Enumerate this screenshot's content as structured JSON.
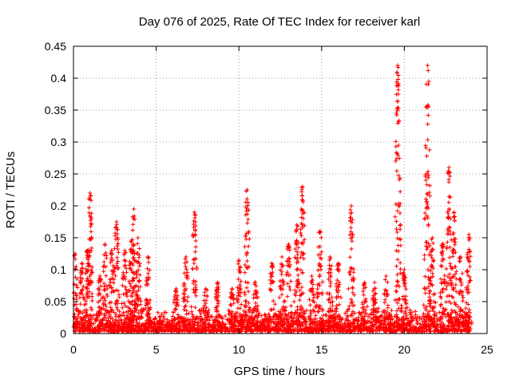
{
  "chart_data": {
    "type": "scatter",
    "title": "Day 076 of 2025, Rate Of TEC Index for receiver karl",
    "xlabel": "GPS time / hours",
    "ylabel": "ROTI / TECUs",
    "xlim": [
      0,
      25
    ],
    "ylim": [
      0,
      0.45
    ],
    "grid": true,
    "x_ticks": [
      "0",
      "5",
      "10",
      "15",
      "20",
      "25"
    ],
    "y_ticks": [
      "0",
      "0.05",
      "0.1",
      "0.15",
      "0.2",
      "0.25",
      "0.3",
      "0.35",
      "0.4",
      "0.45"
    ],
    "marker": "+",
    "series": [
      {
        "name": "ROTI",
        "color": "#ff0000",
        "background_band": {
          "x_start": 0,
          "x_end": 24,
          "y_base": 0.015,
          "y_spread": 0.025,
          "count": 2200
        },
        "activity": [
          {
            "x": 0.1,
            "peak": 0.125
          },
          {
            "x": 0.5,
            "peak": 0.11
          },
          {
            "x": 0.85,
            "peak": 0.13
          },
          {
            "x": 1.0,
            "peak": 0.22
          },
          {
            "x": 1.6,
            "peak": 0.09
          },
          {
            "x": 1.9,
            "peak": 0.14
          },
          {
            "x": 2.3,
            "peak": 0.13
          },
          {
            "x": 2.6,
            "peak": 0.175
          },
          {
            "x": 3.1,
            "peak": 0.13
          },
          {
            "x": 3.5,
            "peak": 0.145
          },
          {
            "x": 3.65,
            "peak": 0.195
          },
          {
            "x": 3.9,
            "peak": 0.15
          },
          {
            "x": 4.5,
            "peak": 0.12
          },
          {
            "x": 6.2,
            "peak": 0.07
          },
          {
            "x": 6.8,
            "peak": 0.12
          },
          {
            "x": 7.3,
            "peak": 0.19
          },
          {
            "x": 8.0,
            "peak": 0.07
          },
          {
            "x": 8.7,
            "peak": 0.08
          },
          {
            "x": 9.6,
            "peak": 0.07
          },
          {
            "x": 10.0,
            "peak": 0.115
          },
          {
            "x": 10.5,
            "peak": 0.225
          },
          {
            "x": 11.0,
            "peak": 0.08
          },
          {
            "x": 12.0,
            "peak": 0.11
          },
          {
            "x": 12.6,
            "peak": 0.12
          },
          {
            "x": 13.0,
            "peak": 0.14
          },
          {
            "x": 13.5,
            "peak": 0.17
          },
          {
            "x": 13.85,
            "peak": 0.23
          },
          {
            "x": 14.4,
            "peak": 0.09
          },
          {
            "x": 14.9,
            "peak": 0.16
          },
          {
            "x": 15.5,
            "peak": 0.12
          },
          {
            "x": 16.0,
            "peak": 0.11
          },
          {
            "x": 16.8,
            "peak": 0.2
          },
          {
            "x": 17.6,
            "peak": 0.08
          },
          {
            "x": 18.2,
            "peak": 0.08
          },
          {
            "x": 18.9,
            "peak": 0.09
          },
          {
            "x": 19.6,
            "peak": 0.42
          },
          {
            "x": 20.0,
            "peak": 0.1
          },
          {
            "x": 21.4,
            "peak": 0.42
          },
          {
            "x": 21.7,
            "peak": 0.15
          },
          {
            "x": 22.3,
            "peak": 0.14
          },
          {
            "x": 22.7,
            "peak": 0.26
          },
          {
            "x": 23.0,
            "peak": 0.19
          },
          {
            "x": 23.4,
            "peak": 0.12
          },
          {
            "x": 23.9,
            "peak": 0.155
          }
        ]
      }
    ]
  }
}
